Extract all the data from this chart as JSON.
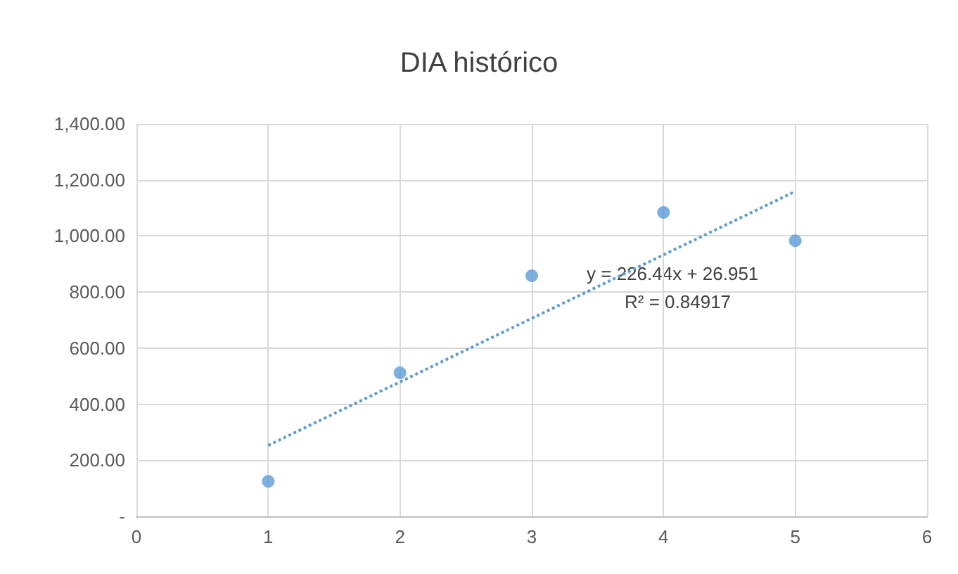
{
  "chart_data": {
    "type": "scatter",
    "title": "DIA histórico",
    "x": [
      1,
      2,
      3,
      4,
      5
    ],
    "series": [
      {
        "color": "#5b9bd5",
        "values": [
          125,
          512,
          858,
          1084,
          983
        ],
        "marker": "circle"
      },
      {
        "type": "line",
        "color": "#5b9bd5",
        "x": [
          1,
          5
        ],
        "values": [
          253,
          1159
        ],
        "line_style": "dotted",
        "marker": "none"
      }
    ],
    "xlim": [
      0,
      6
    ],
    "xticks": [
      0,
      1,
      2,
      3,
      4,
      5,
      6
    ],
    "ylim": [
      0,
      1400
    ],
    "yticks": [
      {
        "value": 0,
        "label": "-"
      },
      {
        "value": 200,
        "label": "200.00"
      },
      {
        "value": 400,
        "label": "400.00"
      },
      {
        "value": 600,
        "label": "600.00"
      },
      {
        "value": 800,
        "label": "800.00"
      },
      {
        "value": 1000,
        "label": "1,000.00"
      },
      {
        "value": 1200,
        "label": "1,200.00"
      },
      {
        "value": 1400,
        "label": "1,400.00"
      }
    ],
    "grid": true,
    "annotations": [
      "y = 226.44x + 26.951",
      "R² = 0.84917"
    ]
  }
}
